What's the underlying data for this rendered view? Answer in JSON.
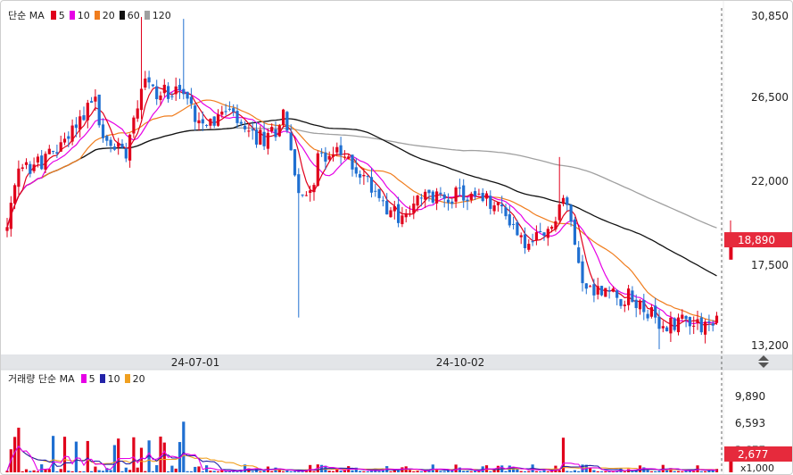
{
  "chart_data": [
    {
      "type": "candlestick",
      "legend": {
        "title": "단순 MA",
        "items": [
          {
            "label": "5",
            "color": "#e0001b"
          },
          {
            "label": "10",
            "color": "#e600e6"
          },
          {
            "label": "20",
            "color": "#f07d1e"
          },
          {
            "label": "60",
            "color": "#111111"
          },
          {
            "label": "120",
            "color": "#a0a0a0"
          }
        ]
      },
      "y_ticks": [
        "30,850",
        "26,500",
        "22,000",
        "17,500",
        "13,200"
      ],
      "ylim": [
        13200,
        30850
      ],
      "x_ticks": [
        "24-07-01",
        "24-10-02"
      ],
      "current_price": "18,890",
      "colors": {
        "up": "#e0001b",
        "down": "#1f6fd1",
        "price_tag": "#e62a3c"
      },
      "candles_approx": [
        {
          "date": "start",
          "open": 19300,
          "close": 19500
        },
        {
          "date": "early June",
          "open": 23500,
          "close": 22000
        },
        {
          "date": "mid June",
          "open": 25000,
          "close": 29500
        },
        {
          "date": "late June",
          "open": 27500,
          "close": 25500
        },
        {
          "date": "24-07-01",
          "open": 24500,
          "close": 25800
        },
        {
          "date": "mid July",
          "open": 25500,
          "close": 26000
        },
        {
          "date": "late July",
          "open": 25000,
          "close": 24000
        },
        {
          "date": "mid Aug",
          "open": 25500,
          "close": 24800
        },
        {
          "date": "late Aug",
          "open": 21500,
          "close": 21000
        },
        {
          "date": "mid Sep",
          "open": 21000,
          "close": 20500
        },
        {
          "date": "24-10-02",
          "open": 21000,
          "close": 21300
        },
        {
          "date": "late Oct",
          "open": 18500,
          "close": 18200
        },
        {
          "date": "early Nov",
          "open": 20200,
          "close": 21200
        },
        {
          "date": "mid Nov",
          "open": 18000,
          "close": 16300
        },
        {
          "date": "early Dec",
          "open": 15500,
          "close": 14300
        },
        {
          "date": "mid Dec",
          "open": 14500,
          "close": 14600
        },
        {
          "date": "last",
          "open": 17800,
          "close": 18890
        }
      ]
    },
    {
      "type": "bar",
      "legend": {
        "title": "거래량 단순 MA",
        "items": [
          {
            "label": "5",
            "color": "#e600e6"
          },
          {
            "label": "10",
            "color": "#2323a8"
          },
          {
            "label": "20",
            "color": "#f0a020"
          }
        ]
      },
      "y_ticks": [
        "9,890",
        "6,593"
      ],
      "current_volume": "2,677",
      "hidden_label": "2,677",
      "unit_label": "x1,000"
    }
  ]
}
